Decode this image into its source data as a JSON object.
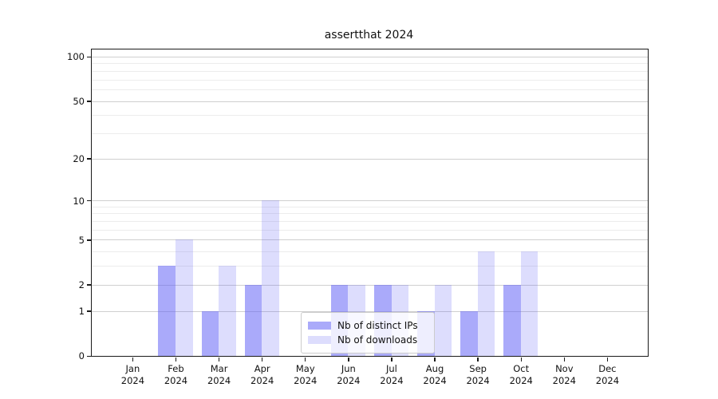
{
  "title": "assertthat 2024",
  "chart_data": {
    "type": "bar",
    "title": "assertthat 2024",
    "categories": [
      "Jan",
      "Feb",
      "Mar",
      "Apr",
      "May",
      "Jun",
      "Jul",
      "Aug",
      "Sep",
      "Oct",
      "Nov",
      "Dec"
    ],
    "category_year": "2024",
    "series": [
      {
        "name": "Nb of distinct IPs",
        "color": "rgba(100,100,245,0.55)",
        "values": [
          0,
          3,
          1,
          2,
          0,
          2,
          2,
          1,
          1,
          2,
          0,
          0
        ]
      },
      {
        "name": "Nb of downloads",
        "color": "rgba(100,100,245,0.22)",
        "values": [
          0,
          5,
          3,
          10,
          0,
          2,
          2,
          2,
          4,
          4,
          0,
          0
        ]
      }
    ],
    "yscale": "log1p",
    "y_major_ticks": [
      0,
      1,
      2,
      5,
      10,
      20,
      50,
      100
    ],
    "y_minor_gridlines": [
      3,
      4,
      6,
      7,
      8,
      9,
      30,
      40,
      60,
      70,
      80,
      90
    ],
    "ylim": [
      0,
      112
    ],
    "grid": true,
    "legend_position": "lower center"
  }
}
